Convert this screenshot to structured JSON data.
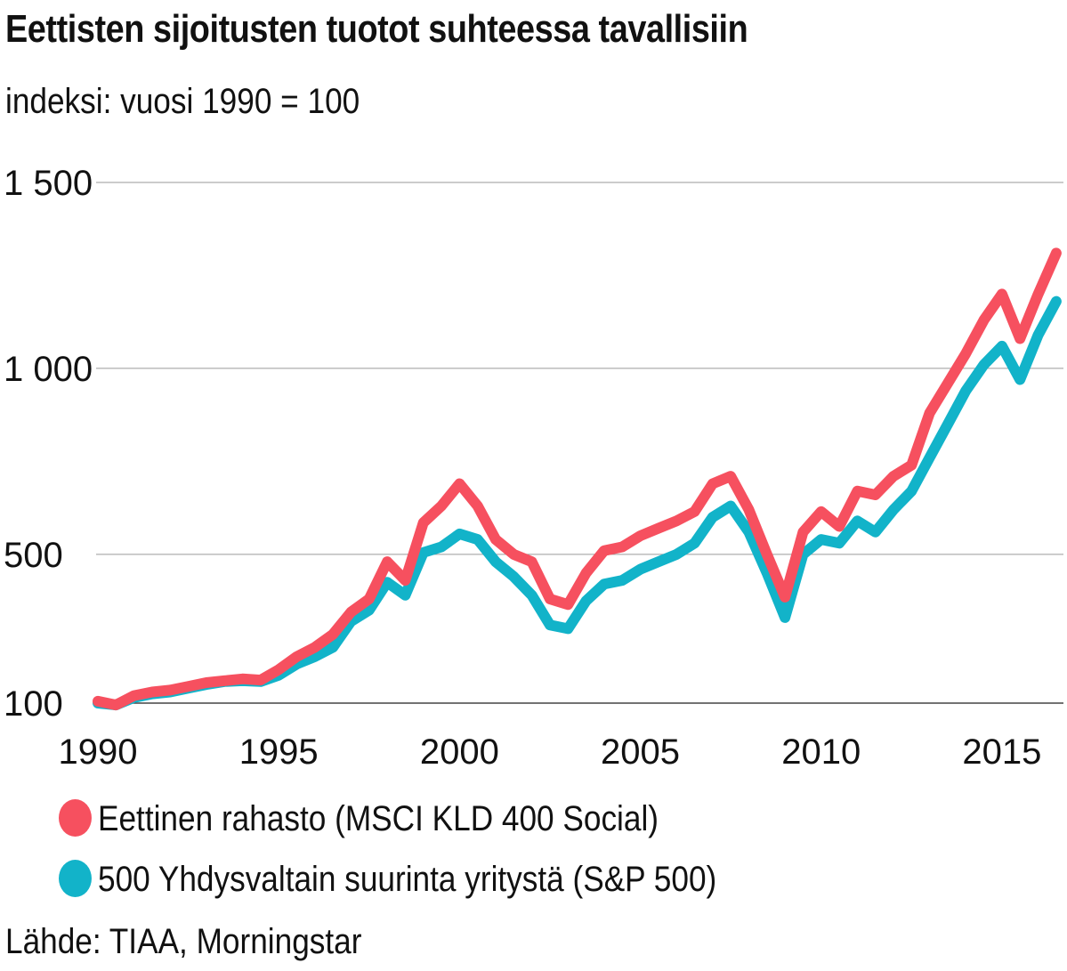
{
  "title": "Eettisten sijoitusten tuotot suhteessa tavallisiin",
  "subtitle": "indeksi: vuosi 1990 = 100",
  "source": "Lähde: TIAA, Morningstar",
  "chart_data": {
    "type": "line",
    "title": "Eettisten sijoitusten tuotot suhteessa tavallisiin",
    "subtitle": "indeksi: vuosi 1990 = 100",
    "xlabel": "",
    "ylabel": "",
    "xlim": [
      1990,
      2016.7
    ],
    "ylim": [
      100,
      1500
    ],
    "grid": "horizontal",
    "legend_position": "bottom",
    "y_ticks": [
      {
        "value": 100,
        "label": "100"
      },
      {
        "value": 500,
        "label": "500"
      },
      {
        "value": 1000,
        "label": "1 000"
      },
      {
        "value": 1500,
        "label": "1 500"
      }
    ],
    "x_ticks": [
      {
        "value": 1990,
        "label": "1990"
      },
      {
        "value": 1995,
        "label": "1995"
      },
      {
        "value": 2000,
        "label": "2000"
      },
      {
        "value": 2005,
        "label": "2005"
      },
      {
        "value": 2010,
        "label": "2010"
      },
      {
        "value": 2015,
        "label": "2015"
      }
    ],
    "x": [
      1990.0,
      1990.5,
      1991.0,
      1991.5,
      1992.0,
      1992.5,
      1993.0,
      1993.5,
      1994.0,
      1994.5,
      1995.0,
      1995.5,
      1996.0,
      1996.5,
      1997.0,
      1997.5,
      1998.0,
      1998.5,
      1999.0,
      1999.5,
      2000.0,
      2000.5,
      2001.0,
      2001.5,
      2002.0,
      2002.5,
      2003.0,
      2003.5,
      2004.0,
      2004.5,
      2005.0,
      2005.5,
      2006.0,
      2006.5,
      2007.0,
      2007.5,
      2008.0,
      2008.5,
      2009.0,
      2009.5,
      2010.0,
      2010.5,
      2011.0,
      2011.5,
      2012.0,
      2012.5,
      2013.0,
      2013.5,
      2014.0,
      2014.5,
      2015.0,
      2015.5,
      2016.0,
      2016.5
    ],
    "series": [
      {
        "name": "Eettinen rahasto (MSCI KLD 400 Social)",
        "color": "#f6505f",
        "values": [
          105,
          95,
          120,
          130,
          135,
          145,
          155,
          160,
          165,
          162,
          190,
          225,
          250,
          285,
          345,
          380,
          480,
          430,
          585,
          630,
          690,
          630,
          540,
          500,
          480,
          380,
          365,
          450,
          510,
          520,
          550,
          570,
          590,
          615,
          690,
          710,
          620,
          500,
          385,
          560,
          615,
          575,
          670,
          660,
          710,
          740,
          880,
          960,
          1040,
          1130,
          1200,
          1080,
          1200,
          1310
        ]
      },
      {
        "name": "500 Yhdysvaltain suurinta yritystä (S&P 500)",
        "color": "#12b3c9",
        "values": [
          100,
          95,
          115,
          125,
          130,
          140,
          150,
          158,
          160,
          158,
          175,
          205,
          225,
          250,
          320,
          350,
          425,
          390,
          505,
          520,
          555,
          540,
          480,
          440,
          390,
          310,
          300,
          375,
          420,
          430,
          460,
          480,
          500,
          530,
          600,
          630,
          560,
          450,
          330,
          500,
          540,
          530,
          590,
          560,
          620,
          670,
          760,
          850,
          940,
          1010,
          1060,
          970,
          1090,
          1180
        ]
      }
    ]
  }
}
